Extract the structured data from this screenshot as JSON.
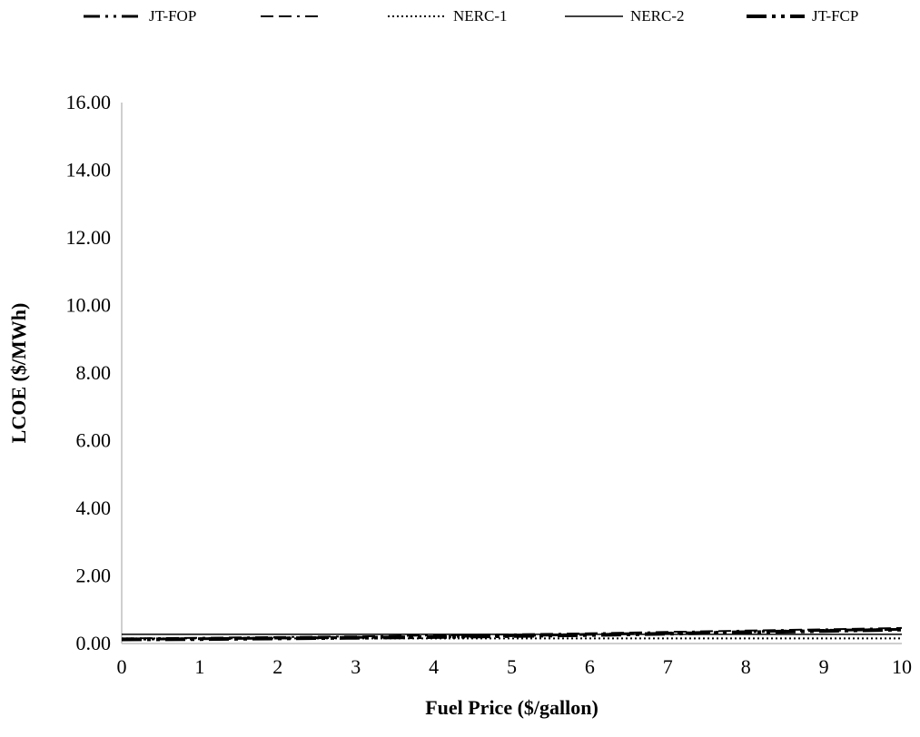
{
  "chart_data": {
    "type": "line",
    "title": "",
    "xlabel": "Fuel Price ($/gallon)",
    "ylabel": "LCOE ($/MWh)",
    "xlim": [
      0,
      10
    ],
    "ylim": [
      0,
      16
    ],
    "x_ticks": [
      "0",
      "1",
      "2",
      "3",
      "4",
      "5",
      "6",
      "7",
      "8",
      "9",
      "10"
    ],
    "y_ticks": [
      "0.00",
      "2.00",
      "4.00",
      "6.00",
      "8.00",
      "10.00",
      "12.00",
      "14.00",
      "16.00"
    ],
    "grid": false,
    "legend_position": "top",
    "x": [
      0,
      1,
      2,
      3,
      4,
      5,
      6,
      7,
      8,
      9,
      10
    ],
    "series": [
      {
        "name": "JT-FOP",
        "style": "long-dash-dot-dot",
        "values": [
          0.13,
          0.14,
          0.16,
          0.18,
          0.2,
          0.23,
          0.27,
          0.31,
          0.35,
          0.39,
          0.42
        ]
      },
      {
        "name": "",
        "style": "dash-dash-dot",
        "values": [
          0.15,
          0.17,
          0.19,
          0.21,
          0.24,
          0.27,
          0.3,
          0.34,
          0.38,
          0.42,
          0.46
        ]
      },
      {
        "name": "NERC-1",
        "style": "dotted",
        "values": [
          0.15,
          0.15,
          0.15,
          0.15,
          0.15,
          0.15,
          0.15,
          0.15,
          0.15,
          0.15,
          0.15
        ]
      },
      {
        "name": "NERC-2",
        "style": "solid",
        "values": [
          0.27,
          0.27,
          0.27,
          0.27,
          0.27,
          0.27,
          0.27,
          0.27,
          0.27,
          0.27,
          0.27
        ]
      },
      {
        "name": "JT-FCP",
        "style": "thick-dash-dot-dot",
        "values": [
          0.12,
          0.13,
          0.15,
          0.17,
          0.19,
          0.22,
          0.25,
          0.29,
          0.33,
          0.37,
          0.41
        ]
      }
    ]
  },
  "series_colors": [
    "#000000",
    "#000000",
    "#000000",
    "#000000",
    "#000000"
  ],
  "axis_color": "#bfbfbf"
}
